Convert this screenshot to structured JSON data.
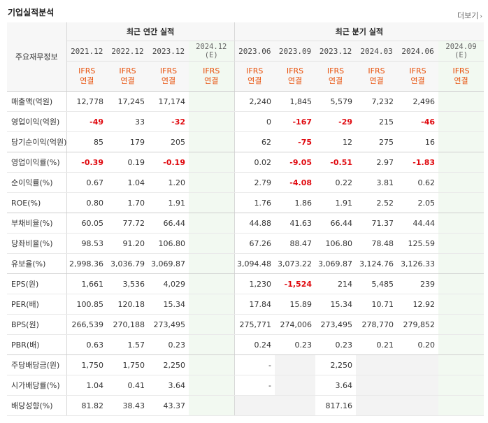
{
  "header": {
    "title": "기업실적분석",
    "more_label": "더보기"
  },
  "table": {
    "corner_label": "주요재무정보",
    "group_annual": "최근 연간 실적",
    "group_quarter": "최근 분기 실적",
    "periods": [
      "2021.12",
      "2022.12",
      "2023.12",
      "2024.12",
      "2023.06",
      "2023.09",
      "2023.12",
      "2024.03",
      "2024.06",
      "2024.09"
    ],
    "estimate_mark": "(E)",
    "ifrs_line1": "IFRS",
    "ifrs_line2": "연결",
    "rows": [
      {
        "label": "매출액(억원)",
        "values": [
          "12,778",
          "17,245",
          "17,174",
          "",
          "2,240",
          "1,845",
          "5,579",
          "7,232",
          "2,496",
          ""
        ]
      },
      {
        "label": "영업이익(억원)",
        "values": [
          "-49",
          "33",
          "-32",
          "",
          "0",
          "-167",
          "-29",
          "215",
          "-46",
          ""
        ]
      },
      {
        "label": "당기순이익(억원)",
        "values": [
          "85",
          "179",
          "205",
          "",
          "62",
          "-75",
          "12",
          "275",
          "16",
          ""
        ]
      },
      {
        "label": "영업이익률(%)",
        "values": [
          "-0.39",
          "0.19",
          "-0.19",
          "",
          "0.02",
          "-9.05",
          "-0.51",
          "2.97",
          "-1.83",
          ""
        ]
      },
      {
        "label": "순이익률(%)",
        "values": [
          "0.67",
          "1.04",
          "1.20",
          "",
          "2.79",
          "-4.08",
          "0.22",
          "3.81",
          "0.62",
          ""
        ]
      },
      {
        "label": "ROE(%)",
        "values": [
          "0.80",
          "1.70",
          "1.91",
          "",
          "1.76",
          "1.86",
          "1.91",
          "2.52",
          "2.05",
          ""
        ]
      },
      {
        "label": "부채비율(%)",
        "values": [
          "60.05",
          "77.72",
          "66.44",
          "",
          "44.88",
          "41.63",
          "66.44",
          "71.37",
          "44.44",
          ""
        ]
      },
      {
        "label": "당좌비율(%)",
        "values": [
          "98.53",
          "91.20",
          "106.80",
          "",
          "67.26",
          "88.47",
          "106.80",
          "78.48",
          "125.59",
          ""
        ]
      },
      {
        "label": "유보율(%)",
        "values": [
          "2,998.36",
          "3,036.79",
          "3,069.87",
          "",
          "3,094.48",
          "3,073.22",
          "3,069.87",
          "3,124.76",
          "3,126.33",
          ""
        ]
      },
      {
        "label": "EPS(원)",
        "values": [
          "1,661",
          "3,536",
          "4,029",
          "",
          "1,230",
          "-1,524",
          "214",
          "5,485",
          "239",
          ""
        ]
      },
      {
        "label": "PER(배)",
        "values": [
          "100.85",
          "120.18",
          "15.34",
          "",
          "17.84",
          "15.89",
          "15.34",
          "10.71",
          "12.92",
          ""
        ]
      },
      {
        "label": "BPS(원)",
        "values": [
          "266,539",
          "270,188",
          "273,495",
          "",
          "275,771",
          "274,006",
          "273,495",
          "278,770",
          "279,852",
          ""
        ]
      },
      {
        "label": "PBR(배)",
        "values": [
          "0.63",
          "1.57",
          "0.23",
          "",
          "0.24",
          "0.23",
          "0.23",
          "0.21",
          "0.20",
          ""
        ]
      },
      {
        "label": "주당배당금(원)",
        "values": [
          "1,750",
          "1,750",
          "2,250",
          "",
          "-",
          "",
          "2,250",
          "",
          "",
          ""
        ]
      },
      {
        "label": "시가배당률(%)",
        "values": [
          "1.04",
          "0.41",
          "3.64",
          "",
          "-",
          "",
          "3.64",
          "",
          "",
          ""
        ]
      },
      {
        "label": "배당성향(%)",
        "values": [
          "81.82",
          "38.43",
          "43.37",
          "",
          "",
          "",
          "817.16",
          "",
          "",
          ""
        ]
      }
    ]
  }
}
